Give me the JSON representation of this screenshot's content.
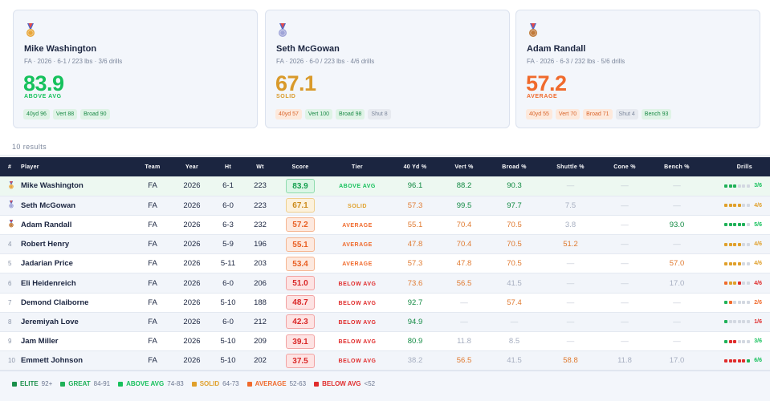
{
  "colors": {
    "elite": "#1fa650",
    "great": "#1fb158",
    "above_avg": "#16c15c",
    "solid": "#e0a02b",
    "average": "#f06a2c",
    "below_avg": "#e02c2c",
    "header_bg": "#1b2540"
  },
  "cards": [
    {
      "medal_icon": "gold-medal-icon",
      "medal_color": "#e8a63a",
      "name": "Mike Washington",
      "meta": "FA · 2026 · 6-1 / 223 lbs · 3/6 drills",
      "score": "83.9",
      "tier": "ABOVE AVG",
      "color": "#16c15c",
      "chips": [
        {
          "label": "40yd 96",
          "tier": "great"
        },
        {
          "label": "Vert 88",
          "tier": "great"
        },
        {
          "label": "Broad 90",
          "tier": "great"
        }
      ]
    },
    {
      "medal_icon": "silver-medal-icon",
      "medal_color": "#9fa4d8",
      "name": "Seth McGowan",
      "meta": "FA · 2026 · 6-0 / 223 lbs · 4/6 drills",
      "score": "67.1",
      "tier": "SOLID",
      "color": "#d99a2b",
      "chips": [
        {
          "label": "40yd 57",
          "tier": "avg"
        },
        {
          "label": "Vert 100",
          "tier": "great"
        },
        {
          "label": "Broad 98",
          "tier": "great"
        },
        {
          "label": "Shut 8",
          "tier": "low"
        }
      ]
    },
    {
      "medal_icon": "bronze-medal-icon",
      "medal_color": "#c07a3a",
      "name": "Adam Randall",
      "meta": "FA · 2026 · 6-3 / 232 lbs · 5/6 drills",
      "score": "57.2",
      "tier": "AVERAGE",
      "color": "#f06a2c",
      "chips": [
        {
          "label": "40yd 55",
          "tier": "avg"
        },
        {
          "label": "Vert 70",
          "tier": "avg"
        },
        {
          "label": "Broad 71",
          "tier": "avg"
        },
        {
          "label": "Shut 4",
          "tier": "low"
        },
        {
          "label": "Bench 93",
          "tier": "great"
        }
      ]
    }
  ],
  "results_text": "10 results",
  "table": {
    "headers": [
      "#",
      "Player",
      "Team",
      "Year",
      "Ht",
      "Wt",
      "Score",
      "Tier",
      "40 Yd %",
      "Vert %",
      "Broad %",
      "Shuttle %",
      "Cone %",
      "Bench %",
      "Drills"
    ],
    "dash": "—",
    "rows": [
      {
        "rank": "",
        "medal": "gold",
        "player": "Mike Washington",
        "team": "FA",
        "year": "2026",
        "ht": "6-1",
        "wt": "223",
        "score": "83.9",
        "tier": "ABOVE AVG",
        "tk": "above",
        "pct": [
          [
            "96.1",
            "g"
          ],
          [
            "88.2",
            "g"
          ],
          [
            "90.3",
            "g"
          ],
          [
            "—",
            "d"
          ],
          [
            "—",
            "d"
          ],
          [
            "—",
            "d"
          ]
        ],
        "bars": [
          "g",
          "g",
          "g",
          "x",
          "x",
          "x"
        ],
        "drills": "3/6",
        "dk": "above"
      },
      {
        "rank": "",
        "medal": "silver",
        "player": "Seth McGowan",
        "team": "FA",
        "year": "2026",
        "ht": "6-0",
        "wt": "223",
        "score": "67.1",
        "tier": "SOLID",
        "tk": "solid",
        "pct": [
          [
            "57.3",
            "o"
          ],
          [
            "99.5",
            "g"
          ],
          [
            "97.7",
            "g"
          ],
          [
            "7.5",
            "l"
          ],
          [
            "—",
            "d"
          ],
          [
            "—",
            "d"
          ]
        ],
        "bars": [
          "y",
          "y",
          "y",
          "y",
          "x",
          "x"
        ],
        "drills": "4/6",
        "dk": "solid"
      },
      {
        "rank": "",
        "medal": "bronze",
        "player": "Adam Randall",
        "team": "FA",
        "year": "2026",
        "ht": "6-3",
        "wt": "232",
        "score": "57.2",
        "tier": "AVERAGE",
        "tk": "average",
        "pct": [
          [
            "55.1",
            "o"
          ],
          [
            "70.4",
            "o"
          ],
          [
            "70.5",
            "o"
          ],
          [
            "3.8",
            "l"
          ],
          [
            "—",
            "d"
          ],
          [
            "93.0",
            "g"
          ]
        ],
        "bars": [
          "g",
          "g",
          "g",
          "g",
          "g",
          "x"
        ],
        "drills": "5/6",
        "dk": "above"
      },
      {
        "rank": "4",
        "medal": "",
        "player": "Robert Henry",
        "team": "FA",
        "year": "2026",
        "ht": "5-9",
        "wt": "196",
        "score": "55.1",
        "tier": "AVERAGE",
        "tk": "average",
        "pct": [
          [
            "47.8",
            "o"
          ],
          [
            "70.4",
            "o"
          ],
          [
            "70.5",
            "o"
          ],
          [
            "51.2",
            "o"
          ],
          [
            "—",
            "d"
          ],
          [
            "—",
            "d"
          ]
        ],
        "bars": [
          "y",
          "y",
          "y",
          "y",
          "x",
          "x"
        ],
        "drills": "4/6",
        "dk": "solid"
      },
      {
        "rank": "5",
        "medal": "",
        "player": "Jadarian Price",
        "team": "FA",
        "year": "2026",
        "ht": "5-11",
        "wt": "203",
        "score": "53.4",
        "tier": "AVERAGE",
        "tk": "average",
        "pct": [
          [
            "57.3",
            "o"
          ],
          [
            "47.8",
            "o"
          ],
          [
            "70.5",
            "o"
          ],
          [
            "—",
            "d"
          ],
          [
            "—",
            "d"
          ],
          [
            "57.0",
            "o"
          ]
        ],
        "bars": [
          "y",
          "y",
          "y",
          "y",
          "x",
          "x"
        ],
        "drills": "4/6",
        "dk": "solid"
      },
      {
        "rank": "6",
        "medal": "",
        "player": "Eli Heidenreich",
        "team": "FA",
        "year": "2026",
        "ht": "6-0",
        "wt": "206",
        "score": "51.0",
        "tier": "BELOW AVG",
        "tk": "below",
        "pct": [
          [
            "73.6",
            "o"
          ],
          [
            "56.5",
            "o"
          ],
          [
            "41.5",
            "l"
          ],
          [
            "—",
            "d"
          ],
          [
            "—",
            "d"
          ],
          [
            "17.0",
            "l"
          ]
        ],
        "bars": [
          "o",
          "y",
          "y",
          "r",
          "x",
          "x"
        ],
        "drills": "4/6",
        "dk": "below"
      },
      {
        "rank": "7",
        "medal": "",
        "player": "Demond Claiborne",
        "team": "FA",
        "year": "2026",
        "ht": "5-10",
        "wt": "188",
        "score": "48.7",
        "tier": "BELOW AVG",
        "tk": "below",
        "pct": [
          [
            "92.7",
            "g"
          ],
          [
            "—",
            "d"
          ],
          [
            "57.4",
            "o"
          ],
          [
            "—",
            "d"
          ],
          [
            "—",
            "d"
          ],
          [
            "—",
            "d"
          ]
        ],
        "bars": [
          "g",
          "o",
          "x",
          "x",
          "x",
          "x"
        ],
        "drills": "2/6",
        "dk": "average"
      },
      {
        "rank": "8",
        "medal": "",
        "player": "Jeremiyah Love",
        "team": "FA",
        "year": "2026",
        "ht": "6-0",
        "wt": "212",
        "score": "42.3",
        "tier": "BELOW AVG",
        "tk": "below",
        "pct": [
          [
            "94.9",
            "g"
          ],
          [
            "—",
            "d"
          ],
          [
            "—",
            "d"
          ],
          [
            "—",
            "d"
          ],
          [
            "—",
            "d"
          ],
          [
            "—",
            "d"
          ]
        ],
        "bars": [
          "g",
          "x",
          "x",
          "x",
          "x",
          "x"
        ],
        "drills": "1/6",
        "dk": "below"
      },
      {
        "rank": "9",
        "medal": "",
        "player": "Jam Miller",
        "team": "FA",
        "year": "2026",
        "ht": "5-10",
        "wt": "209",
        "score": "39.1",
        "tier": "BELOW AVG",
        "tk": "below",
        "pct": [
          [
            "80.9",
            "g"
          ],
          [
            "11.8",
            "l"
          ],
          [
            "8.5",
            "l"
          ],
          [
            "—",
            "d"
          ],
          [
            "—",
            "d"
          ],
          [
            "—",
            "d"
          ]
        ],
        "bars": [
          "g",
          "r",
          "r",
          "x",
          "x",
          "x"
        ],
        "drills": "3/6",
        "dk": "above"
      },
      {
        "rank": "10",
        "medal": "",
        "player": "Emmett Johnson",
        "team": "FA",
        "year": "2026",
        "ht": "5-10",
        "wt": "202",
        "score": "37.5",
        "tier": "BELOW AVG",
        "tk": "below",
        "pct": [
          [
            "38.2",
            "l"
          ],
          [
            "56.5",
            "o"
          ],
          [
            "41.5",
            "l"
          ],
          [
            "58.8",
            "o"
          ],
          [
            "11.8",
            "l"
          ],
          [
            "17.0",
            "l"
          ]
        ],
        "bars": [
          "r",
          "r",
          "r",
          "r",
          "r",
          "g"
        ],
        "drills": "6/6",
        "dk": "above"
      }
    ]
  },
  "legend": [
    {
      "label": "ELITE",
      "range": "92+",
      "color": "#1a8f4a"
    },
    {
      "label": "GREAT",
      "range": "84-91",
      "color": "#1fb158"
    },
    {
      "label": "ABOVE AVG",
      "range": "74-83",
      "color": "#16c15c"
    },
    {
      "label": "SOLID",
      "range": "64-73",
      "color": "#e0a02b"
    },
    {
      "label": "AVERAGE",
      "range": "52-63",
      "color": "#f06a2c"
    },
    {
      "label": "BELOW AVG",
      "range": "<52",
      "color": "#e02c2c"
    }
  ]
}
